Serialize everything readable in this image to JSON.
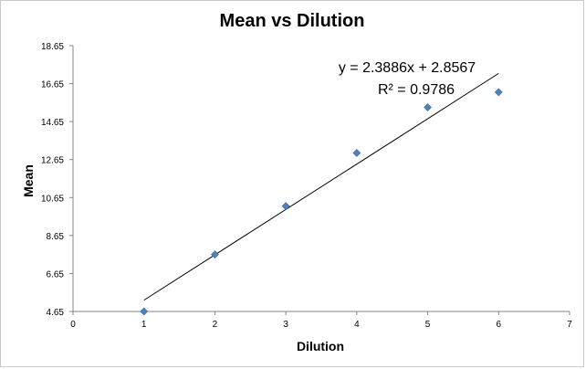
{
  "chart_data": {
    "type": "scatter",
    "title": "Mean vs Dilution",
    "xlabel": "Dilution",
    "ylabel": "Mean",
    "xlim": [
      0,
      7
    ],
    "ylim": [
      4.65,
      18.65
    ],
    "xticks": [
      "0",
      "1",
      "2",
      "3",
      "4",
      "5",
      "6",
      "7"
    ],
    "yticks": [
      "4.65",
      "6.65",
      "8.65",
      "10.65",
      "12.65",
      "14.65",
      "16.65",
      "18.65"
    ],
    "grid": false,
    "legend": "none",
    "series": [
      {
        "marker": "diamond",
        "color": "#4f81bd",
        "points": [
          {
            "x": 1,
            "y": 4.65
          },
          {
            "x": 2,
            "y": 7.65
          },
          {
            "x": 3,
            "y": 10.2
          },
          {
            "x": 4,
            "y": 13.0
          },
          {
            "x": 5,
            "y": 15.4
          },
          {
            "x": 6,
            "y": 16.2
          }
        ]
      }
    ],
    "trendline": {
      "type": "linear",
      "slope": 2.3886,
      "intercept": 2.8567,
      "x_range": [
        1,
        6
      ],
      "color": "#000000",
      "equation_label": "y = 2.3886x + 2.8567",
      "r2_label": "R² = 0.9786"
    }
  }
}
